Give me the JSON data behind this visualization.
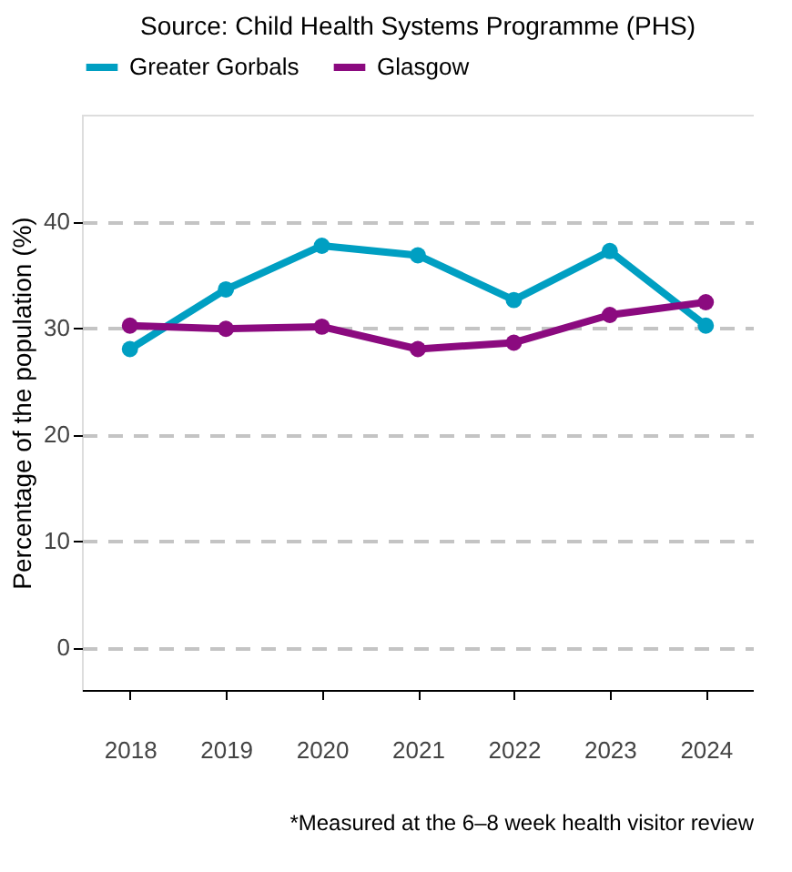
{
  "chart_data": {
    "type": "line",
    "title": "Source: Child Health Systems Programme (PHS)",
    "ylabel": "Percentage of the population (%)",
    "categories": [
      "2018",
      "2019",
      "2020",
      "2021",
      "2022",
      "2023",
      "2024"
    ],
    "series": [
      {
        "name": "Greater Gorbals",
        "color": "#009fc2",
        "values": [
          28.0,
          33.6,
          37.7,
          36.8,
          32.6,
          37.2,
          30.2
        ]
      },
      {
        "name": "Glasgow",
        "color": "#8b0a7f",
        "values": [
          30.2,
          29.9,
          30.1,
          28.0,
          28.6,
          31.2,
          32.4
        ]
      }
    ],
    "ylim": [
      -4,
      50
    ],
    "yticks": [
      0,
      10,
      20,
      30,
      40
    ],
    "grid": "y",
    "legend": "top",
    "marker": "circle",
    "line_style": "solid",
    "annotations": [
      "*Measured at the 6–8 week health visitor review"
    ]
  }
}
